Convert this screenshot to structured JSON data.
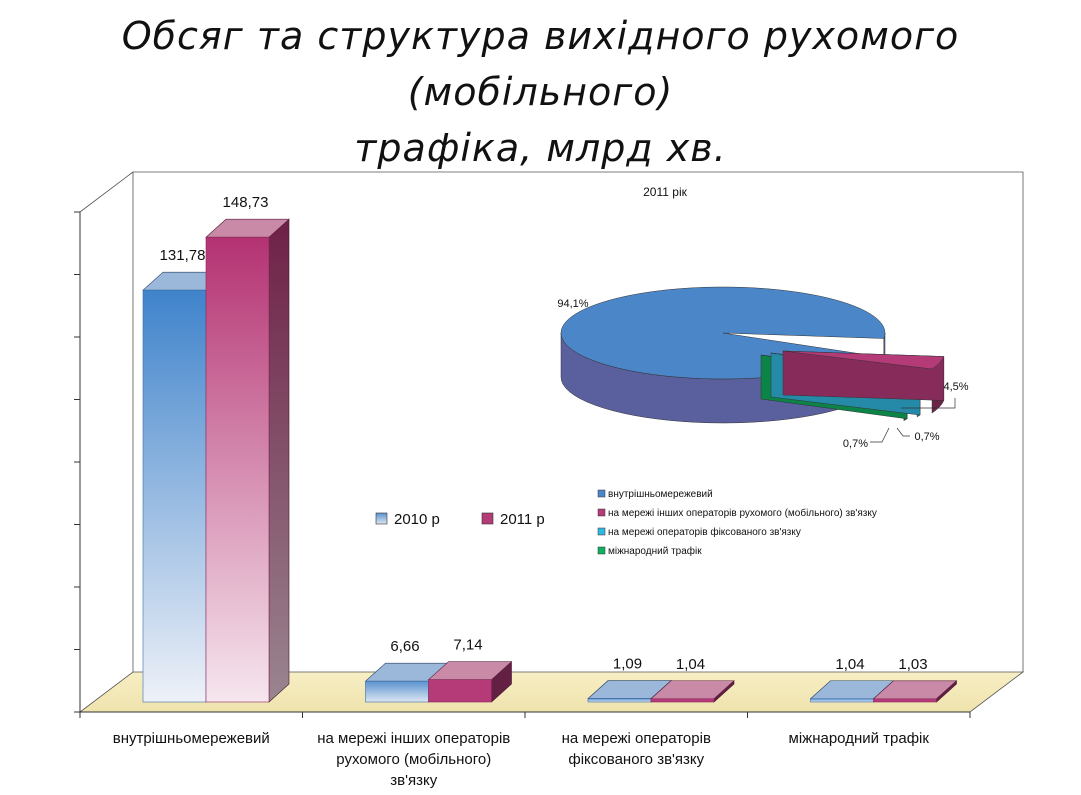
{
  "title_line1": "Обсяг та структура вихідного рухомого (мобільного)",
  "title_line2": "трафіка, млрд хв.",
  "chart_data": [
    {
      "type": "bar",
      "title": "Обсяг та структура вихідного рухомого (мобільного) трафіка, млрд хв.",
      "categories": [
        [
          "внутрішньомережевий"
        ],
        [
          "на мережі інших операторів",
          "рухомого (мобільного)",
          "зв'язку"
        ],
        [
          "на мережі операторів",
          "фіксованого зв'язку"
        ],
        [
          "міжнародний трафік"
        ]
      ],
      "series": [
        {
          "name": "2010 р",
          "values": [
            131.78,
            6.66,
            1.09,
            1.04
          ],
          "labels": [
            "131,78",
            "6,66",
            "1,09",
            "1,04"
          ],
          "color": "#4a86c8"
        },
        {
          "name": "2011 р",
          "values": [
            148.73,
            7.14,
            1.04,
            1.03
          ],
          "labels": [
            "148,73",
            "7,14",
            "1,04",
            "1,03"
          ],
          "color": "#b43a78"
        }
      ],
      "ylim": [
        0,
        160
      ],
      "legend": "center"
    },
    {
      "type": "pie",
      "title": "2011 рік",
      "slices": [
        {
          "name": "внутрішньомережевий",
          "value": 94.1,
          "label": "94,1%",
          "color": "#4a86c8"
        },
        {
          "name": "на мережі інших операторів рухомого (мобільного) зв'язку",
          "value": 4.5,
          "label": "4,5%",
          "color": "#b43a78"
        },
        {
          "name": "на мережі операторів фіксованого зв'язку",
          "value": 0.7,
          "label": "0,7%",
          "color": "#30b8e0"
        },
        {
          "name": "міжнародний трафік",
          "value": 0.7,
          "label": "0,7%",
          "color": "#10b060"
        }
      ],
      "legend": "below"
    }
  ]
}
